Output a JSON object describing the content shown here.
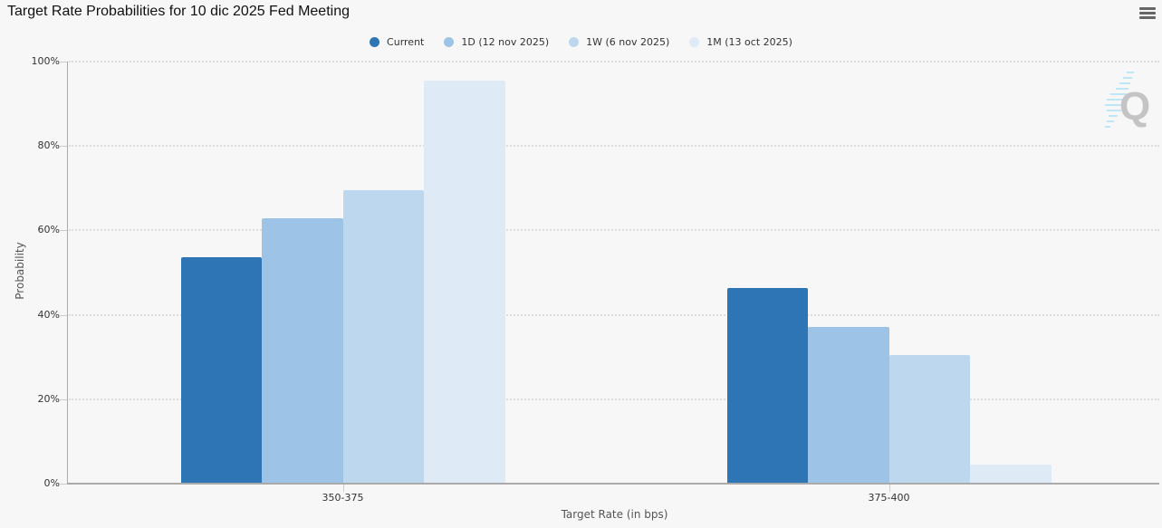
{
  "title": "Target Rate Probabilities for 10 dic 2025 Fed Meeting",
  "menu_icon": "hamburger-menu-icon",
  "watermark_letter": "Q",
  "chart_data": {
    "type": "bar",
    "title": "Target Rate Probabilities for 10 dic 2025 Fed Meeting",
    "xlabel": "Target Rate (in bps)",
    "ylabel": "Probability",
    "categories": [
      "350-375",
      "375-400"
    ],
    "ylim": [
      0,
      100
    ],
    "yticks": [
      "0%",
      "20%",
      "40%",
      "60%",
      "80%",
      "100%"
    ],
    "grid": true,
    "legend_position": "top-center",
    "series": [
      {
        "name": "Current",
        "color": "#2e75b6",
        "values": [
          53.6,
          46.4
        ]
      },
      {
        "name": "1D (12 nov 2025)",
        "color": "#9dc3e6",
        "values": [
          62.9,
          37.1
        ]
      },
      {
        "name": "1W (6 nov 2025)",
        "color": "#bdd7ee",
        "values": [
          69.5,
          30.5
        ]
      },
      {
        "name": "1M (13 oct 2025)",
        "color": "#deebf7",
        "values": [
          95.5,
          4.5
        ]
      }
    ]
  }
}
